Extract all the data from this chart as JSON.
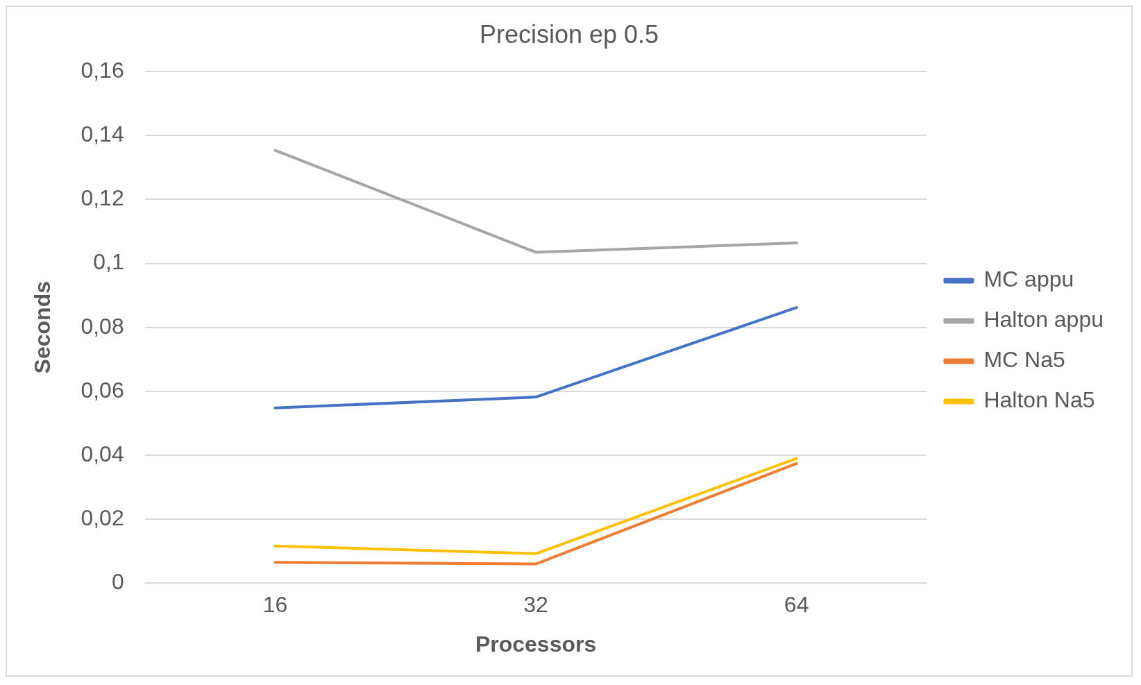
{
  "chart_data": {
    "type": "line",
    "title": "Precision ep 0.5",
    "xlabel": "Processors",
    "ylabel": "Seconds",
    "categories": [
      "16",
      "32",
      "64"
    ],
    "series": [
      {
        "name": "MC appu",
        "color": "#4472c4",
        "values": [
          0.0548,
          0.0582,
          0.0862
        ]
      },
      {
        "name": "Halton appu",
        "color": "#a5a5a5",
        "values": [
          0.1354,
          0.1035,
          0.1064
        ]
      },
      {
        "name": "MC Na5",
        "color": "#ed7d31",
        "values": [
          0.0065,
          0.006,
          0.0374
        ]
      },
      {
        "name": "Halton Na5",
        "color": "#ffc000",
        "values": [
          0.0116,
          0.0092,
          0.039
        ]
      }
    ],
    "ylim": [
      0,
      0.16
    ],
    "yticks": [
      {
        "value": 0,
        "label": "0"
      },
      {
        "value": 0.02,
        "label": "0,02"
      },
      {
        "value": 0.04,
        "label": "0,04"
      },
      {
        "value": 0.06,
        "label": "0,06"
      },
      {
        "value": 0.08,
        "label": "0,08"
      },
      {
        "value": 0.1,
        "label": "0,1"
      },
      {
        "value": 0.12,
        "label": "0,12"
      },
      {
        "value": 0.14,
        "label": "0,14"
      },
      {
        "value": 0.16,
        "label": "0,16"
      }
    ],
    "grid": "y",
    "legend": "right",
    "marker": "none",
    "line_style": "solid"
  }
}
